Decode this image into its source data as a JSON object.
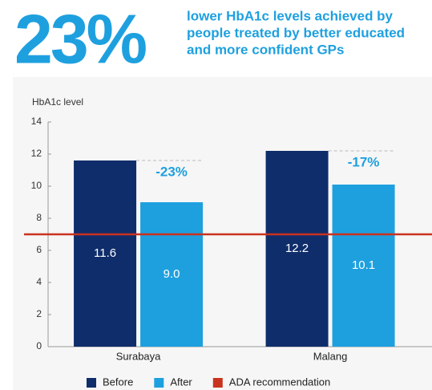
{
  "chart_data": {
    "type": "bar",
    "headline": "23%",
    "headline_lines": [
      "lower HbA1c levels achieved by",
      "people treated by better educated",
      "and more confident GPs"
    ],
    "y_label": "HbA1c level",
    "categories": [
      "Surabaya",
      "Malang"
    ],
    "series": [
      {
        "name": "Before",
        "color": "#0f2d6b",
        "values": [
          11.6,
          12.2
        ],
        "value_labels": [
          "11.6",
          "12.2"
        ]
      },
      {
        "name": "After",
        "color": "#1ea0df",
        "values": [
          9.0,
          10.1
        ],
        "value_labels": [
          "9.0",
          "10.1"
        ]
      }
    ],
    "annotations": [
      "-23%",
      "-17%"
    ],
    "reference_lines": [
      {
        "name": "ADA recommendation",
        "value": 7,
        "color": "#c9321f"
      }
    ],
    "ylim": [
      0,
      14
    ],
    "yticks": [
      0,
      2,
      4,
      6,
      8,
      10,
      12,
      14
    ],
    "grid": false
  }
}
